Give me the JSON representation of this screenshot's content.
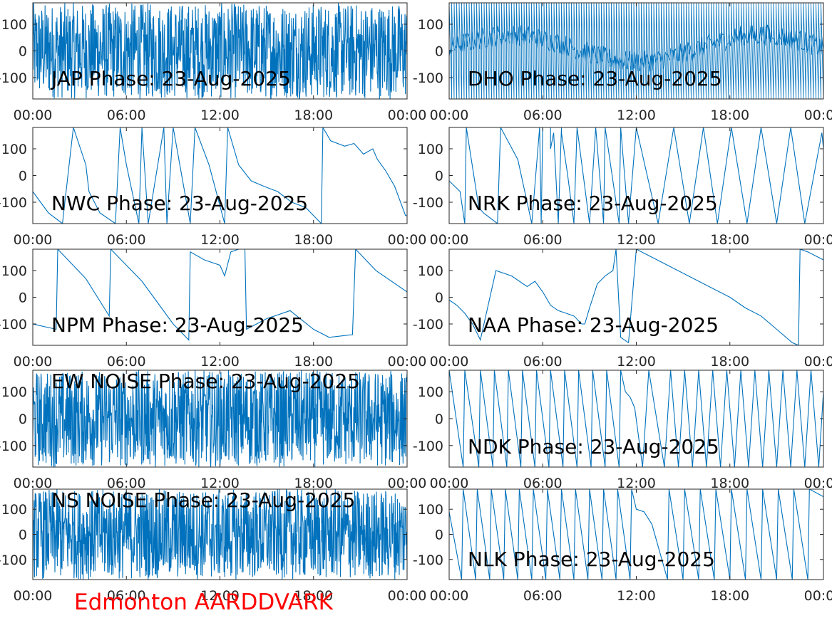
{
  "footer": {
    "label": "Edmonton AARDDVARK",
    "color": "#ff0000"
  },
  "style": {
    "line_color": "#0072bd",
    "axis_color": "#262626",
    "label_color": "#000000"
  },
  "x_ticks": [
    "00:00",
    "06:00",
    "12:00",
    "18:00",
    "00:00"
  ],
  "y_ticks": [
    "100",
    "0",
    "-100"
  ],
  "chart_data": [
    {
      "type": "line",
      "title": "JAP Phase: 23-Aug-2025",
      "x_unit": "hours",
      "xlim": [
        0,
        24
      ],
      "ylim": [
        -180,
        180
      ],
      "grid": false,
      "series": [
        {
          "mode": "noise",
          "x": [
            0,
            24
          ],
          "y": [
            -180,
            180
          ]
        }
      ]
    },
    {
      "type": "line",
      "title": "DHO Phase: 23-Aug-2025",
      "x_unit": "hours",
      "xlim": [
        0,
        24
      ],
      "ylim": [
        -180,
        180
      ],
      "grid": false,
      "series": [
        {
          "mode": "dense_wrap",
          "x": [
            0,
            24
          ],
          "y": [
            -180,
            180
          ]
        }
      ]
    },
    {
      "type": "line",
      "title": "NWC Phase: 23-Aug-2025",
      "x_unit": "hours",
      "xlim": [
        0,
        24
      ],
      "ylim": [
        -180,
        180
      ],
      "grid": false,
      "series": [
        {
          "mode": "wrap",
          "x": [
            0,
            0.5,
            1.0,
            1.9,
            2.6,
            3.4,
            3.6,
            4.3,
            5.3,
            5.6,
            6.0,
            6.8,
            7.0,
            7.4,
            8.4,
            8.6,
            9.0,
            10.1,
            10.4,
            11.3,
            12.3,
            12.5,
            13.2,
            14.0,
            14.8,
            15.7,
            16.6,
            17.5,
            18.5,
            18.6,
            19.1,
            20.0,
            20.6,
            21.2,
            21.8,
            22.1,
            22.6,
            23.2,
            23.9,
            24.0
          ],
          "y": [
            -60,
            -100,
            -140,
            -180,
            180,
            40,
            -60,
            -140,
            -180,
            180,
            40,
            -180,
            180,
            -180,
            180,
            -180,
            180,
            -180,
            180,
            40,
            -180,
            180,
            40,
            -20,
            -40,
            -60,
            -100,
            -120,
            -180,
            180,
            130,
            110,
            120,
            80,
            100,
            60,
            20,
            -40,
            -150,
            -150
          ]
        }
      ]
    },
    {
      "type": "line",
      "title": "NRK Phase: 23-Aug-2025",
      "x_unit": "hours",
      "xlim": [
        0,
        24
      ],
      "ylim": [
        -180,
        180
      ],
      "grid": false,
      "series": [
        {
          "mode": "wrap",
          "x": [
            0,
            0.7,
            1.0,
            1.1,
            1.9,
            2.2,
            3.1,
            3.3,
            4.4,
            5.3,
            5.8,
            5.9,
            6.0,
            6.5,
            6.5,
            6.7,
            7.0,
            7.2,
            7.2,
            7.6,
            8.0,
            8.2,
            9.0,
            9.4,
            9.9,
            10.0,
            10.9,
            11.0,
            11.5,
            12.0,
            13.4,
            14.4,
            15.4,
            16.3,
            17.2,
            18.1,
            19.1,
            20.0,
            21.0,
            21.9,
            22.8,
            23.9,
            24.0
          ],
          "y": [
            -20,
            -60,
            -180,
            180,
            -120,
            -140,
            -180,
            180,
            60,
            -180,
            180,
            -180,
            180,
            180,
            100,
            160,
            -180,
            180,
            160,
            0,
            -180,
            180,
            -180,
            180,
            -180,
            180,
            -180,
            180,
            -180,
            180,
            -180,
            180,
            -180,
            180,
            -180,
            180,
            -180,
            180,
            -180,
            180,
            -180,
            160,
            100
          ]
        }
      ]
    },
    {
      "type": "line",
      "title": "NPM Phase: 23-Aug-2025",
      "x_unit": "hours",
      "xlim": [
        0,
        24
      ],
      "ylim": [
        -180,
        180
      ],
      "grid": false,
      "series": [
        {
          "mode": "wrap",
          "x": [
            0,
            1.5,
            1.6,
            3.4,
            4.9,
            5.0,
            7.0,
            9.0,
            10.0,
            10.1,
            11.0,
            12.0,
            12.3,
            12.7,
            13.2,
            13.6,
            13.7,
            15.0,
            16.5,
            18.0,
            19.0,
            20.5,
            20.7,
            22.0,
            24.0
          ],
          "y": [
            -100,
            -120,
            180,
            70,
            -70,
            180,
            60,
            -100,
            -160,
            170,
            140,
            120,
            80,
            170,
            180,
            180,
            -120,
            -80,
            -50,
            -120,
            -150,
            -140,
            180,
            100,
            20
          ]
        }
      ]
    },
    {
      "type": "line",
      "title": "NAA Phase: 23-Aug-2025",
      "x_unit": "hours",
      "xlim": [
        0,
        24
      ],
      "ylim": [
        -180,
        180
      ],
      "grid": false,
      "series": [
        {
          "mode": "wrap",
          "x": [
            0,
            0.5,
            1.0,
            1.5,
            2.0,
            3.0,
            4.0,
            5.0,
            5.5,
            6.0,
            6.5,
            7.0,
            7.5,
            8.0,
            8.5,
            8.7,
            9.0,
            9.5,
            10.0,
            10.5,
            10.7,
            11.0,
            11.5,
            12.0,
            14.0,
            16.0,
            18.0,
            19.0,
            20.0,
            21.0,
            22.0,
            22.4,
            22.5,
            23.0,
            24.0
          ],
          "y": [
            -10,
            -30,
            -60,
            -100,
            -160,
            100,
            80,
            40,
            60,
            20,
            -30,
            -50,
            -60,
            -70,
            -100,
            -100,
            -40,
            50,
            80,
            100,
            180,
            -150,
            -170,
            180,
            120,
            60,
            0,
            -40,
            -70,
            -120,
            -170,
            -180,
            180,
            170,
            140
          ]
        }
      ]
    },
    {
      "type": "line",
      "title": "EW NOISE Phase: 23-Aug-2025",
      "x_unit": "hours",
      "xlim": [
        0,
        24
      ],
      "ylim": [
        -180,
        180
      ],
      "grid": false,
      "series": [
        {
          "mode": "noise",
          "x": [
            0,
            24
          ],
          "y": [
            -180,
            180
          ]
        }
      ]
    },
    {
      "type": "line",
      "title": "NDK Phase: 23-Aug-2025",
      "x_unit": "hours",
      "xlim": [
        0,
        24
      ],
      "ylim": [
        -180,
        180
      ],
      "grid": false,
      "series": [
        {
          "mode": "wrap",
          "x": [
            0,
            0.9,
            1.0,
            1.9,
            2.0,
            2.8,
            2.9,
            3.7,
            3.8,
            4.6,
            4.7,
            5.5,
            5.6,
            6.4,
            6.5,
            7.3,
            7.4,
            8.2,
            8.3,
            9.1,
            9.2,
            10.0,
            10.1,
            10.9,
            11.0,
            11.3,
            11.6,
            11.9,
            12.4,
            12.8,
            13.8,
            14.2,
            14.7,
            15.1,
            15.6,
            16.0,
            16.5,
            16.9,
            17.4,
            17.8,
            18.3,
            18.7,
            19.2,
            19.6,
            20.1,
            20.5,
            21.0,
            21.4,
            21.9,
            22.3,
            22.8,
            23.2,
            23.7,
            24.0
          ],
          "y": [
            180,
            -180,
            180,
            -180,
            180,
            -180,
            180,
            -180,
            180,
            -180,
            180,
            -180,
            180,
            -180,
            180,
            -180,
            180,
            -180,
            180,
            -180,
            180,
            -180,
            180,
            -180,
            180,
            100,
            80,
            40,
            -180,
            180,
            -180,
            180,
            -180,
            180,
            -180,
            180,
            -180,
            180,
            -180,
            180,
            -180,
            180,
            -180,
            180,
            -180,
            180,
            -180,
            180,
            -180,
            180,
            -180,
            180,
            -180,
            100
          ]
        }
      ]
    },
    {
      "type": "line",
      "title": "NS NOISE Phase: 23-Aug-2025",
      "x_unit": "hours",
      "xlim": [
        0,
        24
      ],
      "ylim": [
        -180,
        180
      ],
      "grid": false,
      "series": [
        {
          "mode": "noise",
          "x": [
            0,
            24
          ],
          "y": [
            -180,
            180
          ]
        }
      ]
    },
    {
      "type": "line",
      "title": "NLK Phase: 23-Aug-2025",
      "x_unit": "hours",
      "xlim": [
        0,
        24
      ],
      "ylim": [
        -180,
        180
      ],
      "grid": false,
      "series": [
        {
          "mode": "wrap",
          "x": [
            0,
            0.8,
            0.9,
            1.7,
            1.8,
            2.6,
            2.7,
            3.5,
            3.6,
            4.4,
            4.5,
            5.3,
            5.4,
            6.2,
            6.3,
            7.1,
            7.2,
            8.0,
            8.1,
            8.9,
            9.0,
            9.8,
            9.9,
            10.7,
            10.8,
            11.6,
            11.7,
            12.0,
            12.5,
            13.0,
            14.0,
            14.1,
            15.0,
            15.1,
            16.0,
            16.1,
            17.0,
            17.1,
            18.0,
            18.1,
            19.0,
            19.1,
            20.0,
            20.1,
            21.0,
            21.1,
            22.0,
            22.1,
            23.0,
            23.1,
            24.0
          ],
          "y": [
            90,
            -180,
            180,
            -180,
            180,
            -180,
            180,
            -180,
            180,
            -180,
            180,
            -180,
            180,
            -180,
            180,
            -180,
            180,
            -180,
            180,
            -180,
            180,
            -180,
            180,
            -180,
            180,
            -180,
            180,
            100,
            90,
            40,
            -180,
            180,
            -180,
            180,
            -180,
            180,
            -180,
            180,
            -180,
            180,
            -180,
            180,
            -180,
            180,
            -180,
            180,
            -180,
            180,
            -180,
            180,
            150
          ]
        }
      ]
    }
  ]
}
